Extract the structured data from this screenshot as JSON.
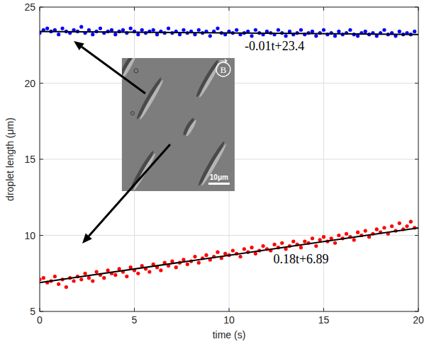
{
  "chart_data": {
    "type": "scatter",
    "x_label": "time (s)",
    "y_label": "droplet length (μm)",
    "xlim": [
      0,
      20
    ],
    "xticks": [
      0,
      5,
      10,
      15,
      20
    ],
    "ylim": [
      5,
      25
    ],
    "yticks": [
      5,
      10,
      15,
      20,
      25
    ],
    "grid": true,
    "annotations": [
      "-0.01t+23.4",
      "0.18t+6.89"
    ],
    "inset_labels": [
      "B",
      "10μm"
    ],
    "series": [
      {
        "type": "scatter",
        "color": "#0000ff",
        "marker": "circle",
        "x": [
          0,
          0.2,
          0.4,
          0.6,
          0.8,
          1,
          1.2,
          1.4,
          1.6,
          1.8,
          2,
          2.2,
          2.4,
          2.6,
          2.8,
          3,
          3.2,
          3.4,
          3.6,
          3.8,
          4,
          4.2,
          4.4,
          4.6,
          4.8,
          5,
          5.2,
          5.4,
          5.6,
          5.8,
          6,
          6.2,
          6.4,
          6.6,
          6.8,
          7,
          7.2,
          7.4,
          7.6,
          7.8,
          8,
          8.2,
          8.4,
          8.6,
          8.8,
          9,
          9.2,
          9.4,
          9.6,
          9.8,
          10,
          10.2,
          10.4,
          10.6,
          10.8,
          11,
          11.2,
          11.4,
          11.6,
          11.8,
          12,
          12.2,
          12.4,
          12.6,
          12.8,
          13,
          13.2,
          13.4,
          13.6,
          13.8,
          14,
          14.2,
          14.4,
          14.6,
          14.8,
          15,
          15.2,
          15.4,
          15.6,
          15.8,
          16,
          16.2,
          16.4,
          16.6,
          16.8,
          17,
          17.2,
          17.4,
          17.6,
          17.8,
          18,
          18.2,
          18.4,
          18.6,
          18.8,
          19,
          19.2,
          19.4,
          19.6,
          19.8
        ],
        "values": [
          23.3,
          23.5,
          23.6,
          23.4,
          23.5,
          23.2,
          23.6,
          23.4,
          23.3,
          23.5,
          23.4,
          23.7,
          23.3,
          23.5,
          23.2,
          23.4,
          23.6,
          23.3,
          23.4,
          23.5,
          23.2,
          23.4,
          23.5,
          23.3,
          23.6,
          23.4,
          23.2,
          23.5,
          23.3,
          23.4,
          23.5,
          23.2,
          23.4,
          23.3,
          23.6,
          23.3,
          23.4,
          23.2,
          23.5,
          23.3,
          23.4,
          23.2,
          23.5,
          23.3,
          23.4,
          23.1,
          23.4,
          23.6,
          23.3,
          23.2,
          23.4,
          23.3,
          23.5,
          23.2,
          23.3,
          23.4,
          23.1,
          23.5,
          23.3,
          23.2,
          23.4,
          23.3,
          23.2,
          23.5,
          23.3,
          23.1,
          23.4,
          23.2,
          23.3,
          23.5,
          23.2,
          23.3,
          23.4,
          23.1,
          23.3,
          23.5,
          23.2,
          23.3,
          23.1,
          23.4,
          23.2,
          23.3,
          23.5,
          23.2,
          23.1,
          23.3,
          23.4,
          23.2,
          23.3,
          23.1,
          23.3,
          23.5,
          23.2,
          23.3,
          23.1,
          23.4,
          23.2,
          23.3,
          23.2,
          23.4
        ]
      },
      {
        "type": "scatter",
        "color": "#ff0000",
        "marker": "circle",
        "x": [
          0,
          0.2,
          0.4,
          0.6,
          0.8,
          1,
          1.2,
          1.4,
          1.6,
          1.8,
          2,
          2.2,
          2.4,
          2.6,
          2.8,
          3,
          3.2,
          3.4,
          3.6,
          3.8,
          4,
          4.2,
          4.4,
          4.6,
          4.8,
          5,
          5.2,
          5.4,
          5.6,
          5.8,
          6,
          6.2,
          6.4,
          6.6,
          6.8,
          7,
          7.2,
          7.4,
          7.6,
          7.8,
          8,
          8.2,
          8.4,
          8.6,
          8.8,
          9,
          9.2,
          9.4,
          9.6,
          9.8,
          10,
          10.2,
          10.4,
          10.6,
          10.8,
          11,
          11.2,
          11.4,
          11.6,
          11.8,
          12,
          12.2,
          12.4,
          12.6,
          12.8,
          13,
          13.2,
          13.4,
          13.6,
          13.8,
          14,
          14.2,
          14.4,
          14.6,
          14.8,
          15,
          15.2,
          15.4,
          15.6,
          15.8,
          16,
          16.2,
          16.4,
          16.6,
          16.8,
          17,
          17.2,
          17.4,
          17.6,
          17.8,
          18,
          18.2,
          18.4,
          18.6,
          18.8,
          19,
          19.2,
          19.4,
          19.6,
          19.8
        ],
        "values": [
          7.1,
          7.2,
          6.9,
          7.0,
          7.3,
          6.8,
          7.1,
          6.6,
          7.2,
          7.0,
          7.3,
          7.1,
          7.5,
          7.2,
          7.0,
          7.6,
          7.4,
          7.2,
          7.7,
          7.5,
          7.4,
          7.8,
          7.6,
          7.3,
          7.9,
          7.7,
          7.5,
          8.0,
          7.8,
          7.6,
          8.1,
          7.9,
          7.7,
          8.2,
          8.0,
          8.3,
          7.9,
          8.2,
          8.4,
          8.1,
          8.3,
          8.6,
          8.2,
          8.5,
          8.7,
          8.4,
          8.6,
          8.9,
          8.5,
          8.8,
          8.7,
          9.0,
          8.8,
          8.6,
          9.1,
          8.9,
          9.2,
          8.8,
          9.0,
          9.3,
          9.1,
          9.0,
          9.4,
          9.2,
          9.5,
          9.1,
          9.3,
          9.6,
          9.4,
          9.2,
          9.6,
          9.5,
          9.8,
          9.3,
          9.7,
          9.9,
          9.6,
          9.8,
          9.5,
          10.0,
          9.8,
          10.1,
          9.9,
          9.7,
          10.2,
          10.0,
          10.3,
          9.9,
          10.1,
          10.4,
          10.2,
          10.5,
          10.1,
          10.6,
          10.3,
          10.8,
          10.4,
          10.6,
          10.9,
          10.5
        ]
      },
      {
        "type": "line",
        "color": "#000000",
        "line_style": "solid",
        "x": [
          0,
          20
        ],
        "values": [
          23.4,
          23.2
        ]
      },
      {
        "type": "line",
        "color": "#000000",
        "line_style": "solid",
        "x": [
          0,
          20
        ],
        "values": [
          6.89,
          10.49
        ]
      }
    ]
  }
}
